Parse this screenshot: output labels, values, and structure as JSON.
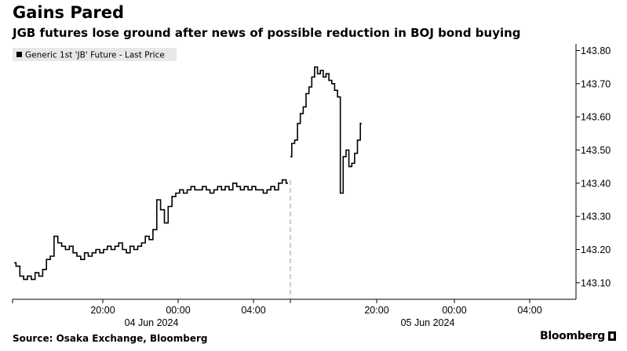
{
  "header": {
    "title": "Gains Pared",
    "subtitle": "JGB futures lose ground after news of possible reduction in BOJ bond buying"
  },
  "footer": {
    "source": "Source: Osaka Exchange, Bloomberg",
    "brand": "Bloomberg"
  },
  "chart_data": {
    "type": "line",
    "title": "Gains Pared",
    "subtitle": "JGB futures lose ground after news of possible reduction in BOJ bond buying",
    "xlabel": "",
    "ylabel": "",
    "legend": {
      "placement": "top-left",
      "entries": [
        "Generic 1st 'JB' Future - Last Price"
      ]
    },
    "y_axis": {
      "side": "right",
      "ylim": [
        143.05,
        143.82
      ],
      "ticks": [
        "143.10",
        "143.20",
        "143.30",
        "143.40",
        "143.50",
        "143.60",
        "143.70",
        "143.80"
      ]
    },
    "x_axis": {
      "time_ticks": [
        "20:00",
        "00:00",
        "04:00",
        "20:00",
        "00:00",
        "04:00"
      ],
      "date_labels": [
        "04 Jun 2024",
        "05 Jun 2024"
      ],
      "session_break_marker": true
    },
    "grid": false,
    "line_color": "#000000",
    "series": [
      {
        "name": "Generic 1st 'JB' Future - Last Price",
        "segments": [
          {
            "session": "04 Jun 2024",
            "values": [
              143.16,
              143.15,
              143.12,
              143.11,
              143.12,
              143.11,
              143.13,
              143.12,
              143.14,
              143.17,
              143.18,
              143.24,
              143.22,
              143.21,
              143.2,
              143.21,
              143.19,
              143.18,
              143.17,
              143.19,
              143.18,
              143.19,
              143.2,
              143.19,
              143.2,
              143.21,
              143.2,
              143.21,
              143.22,
              143.2,
              143.19,
              143.21,
              143.2,
              143.21,
              143.22,
              143.24,
              143.23,
              143.26,
              143.35,
              143.32,
              143.28,
              143.33,
              143.36,
              143.37,
              143.38,
              143.37,
              143.38,
              143.39,
              143.38,
              143.38,
              143.39,
              143.38,
              143.37,
              143.38,
              143.39,
              143.38,
              143.39,
              143.38,
              143.4,
              143.39,
              143.38,
              143.39,
              143.38,
              143.39,
              143.38,
              143.38,
              143.37,
              143.38,
              143.39,
              143.38,
              143.4,
              143.41,
              143.4
            ]
          },
          {
            "session": "05 Jun 2024",
            "values": [
              143.48,
              143.52,
              143.53,
              143.58,
              143.61,
              143.63,
              143.67,
              143.69,
              143.72,
              143.75,
              143.73,
              143.74,
              143.72,
              143.73,
              143.71,
              143.7,
              143.68,
              143.66,
              143.37,
              143.48,
              143.5,
              143.45,
              143.46,
              143.49,
              143.53,
              143.58
            ]
          }
        ]
      }
    ]
  }
}
